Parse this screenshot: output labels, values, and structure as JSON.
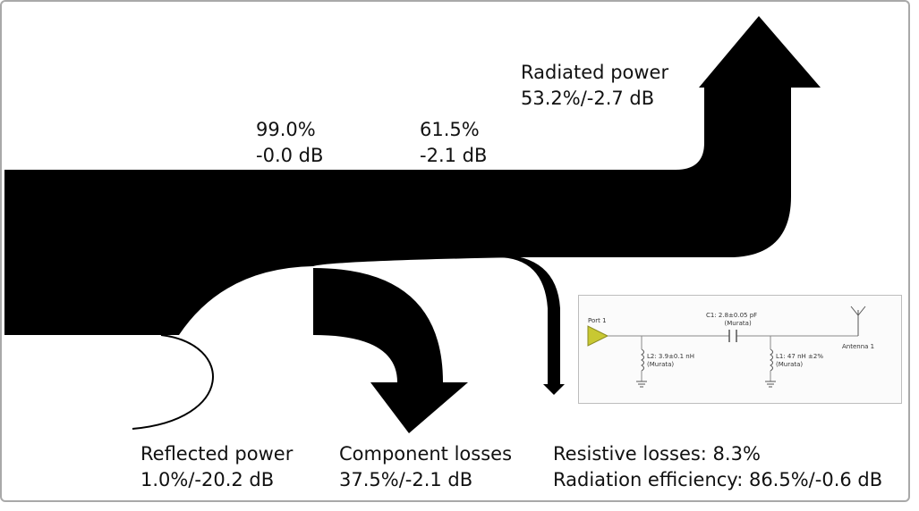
{
  "stages": [
    {
      "percent": "99.0%",
      "db": "-0.0 dB"
    },
    {
      "percent": "61.5%",
      "db": "-2.1 dB"
    }
  ],
  "outputs": {
    "radiated": {
      "title": "Radiated power",
      "value": "53.2%/-2.7 dB"
    },
    "reflected": {
      "title": "Reflected power",
      "value": "1.0%/-20.2 dB"
    },
    "component": {
      "title": "Component losses",
      "value": "37.5%/-2.1 dB"
    },
    "resistive": {
      "line": "Resistive losses: 8.3%"
    },
    "efficiency": {
      "line": "Radiation efficiency: 86.5%/-0.6 dB"
    }
  },
  "schematic": {
    "port": "Port 1",
    "c1": {
      "name": "C1: 2.8±0.05 pF",
      "vendor": "(Murata)"
    },
    "l2": {
      "name": "L2: 3.9±0.1 nH",
      "vendor": "(Murata)"
    },
    "l1": {
      "name": "L1: 47 nH ±2%",
      "vendor": "(Murata)"
    },
    "antenna": "Antenna 1",
    "port_color": "#c8c832"
  },
  "colors": {
    "flow": "#000000",
    "border": "#a9a9a9"
  }
}
